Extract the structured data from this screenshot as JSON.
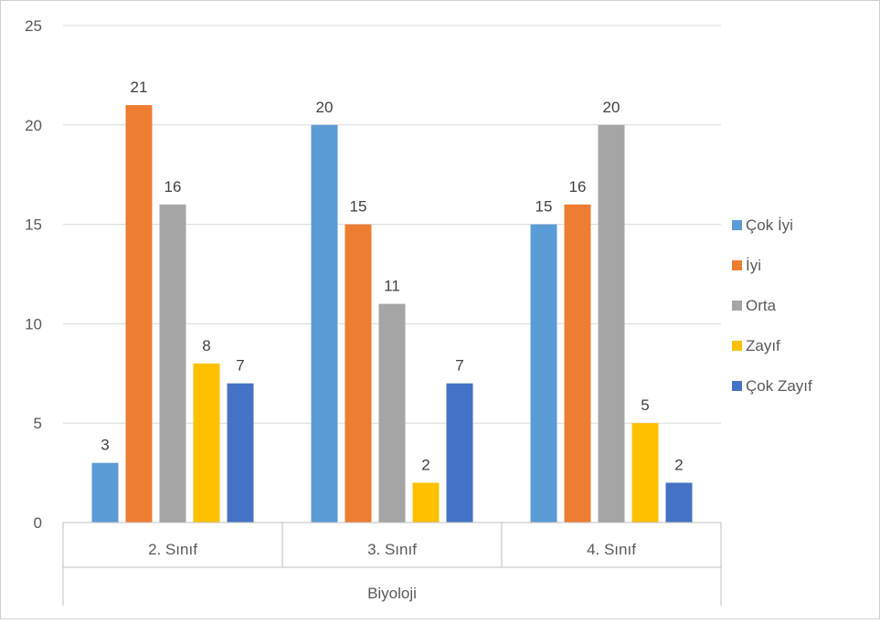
{
  "chart_data": {
    "type": "bar",
    "title": "",
    "xlabel": "",
    "ylabel": "",
    "group_label": "Biyoloji",
    "categories": [
      "2. Sınıf",
      "3. Sınıf",
      "4. Sınıf"
    ],
    "series": [
      {
        "name": "Çok İyi",
        "color": "#5B9BD5",
        "values": [
          3,
          20,
          15
        ]
      },
      {
        "name": "İyi",
        "color": "#ED7D31",
        "values": [
          21,
          15,
          16
        ]
      },
      {
        "name": "Orta",
        "color": "#A5A5A5",
        "values": [
          16,
          11,
          20
        ]
      },
      {
        "name": "Zayıf",
        "color": "#FFC000",
        "values": [
          8,
          2,
          5
        ]
      },
      {
        "name": "Çok Zayıf",
        "color": "#4472C4",
        "values": [
          7,
          7,
          2
        ]
      }
    ],
    "ylim": [
      0,
      25
    ],
    "yticks": [
      0,
      5,
      10,
      15,
      20,
      25
    ],
    "grid": true,
    "legend_position": "right",
    "data_labels": true
  }
}
